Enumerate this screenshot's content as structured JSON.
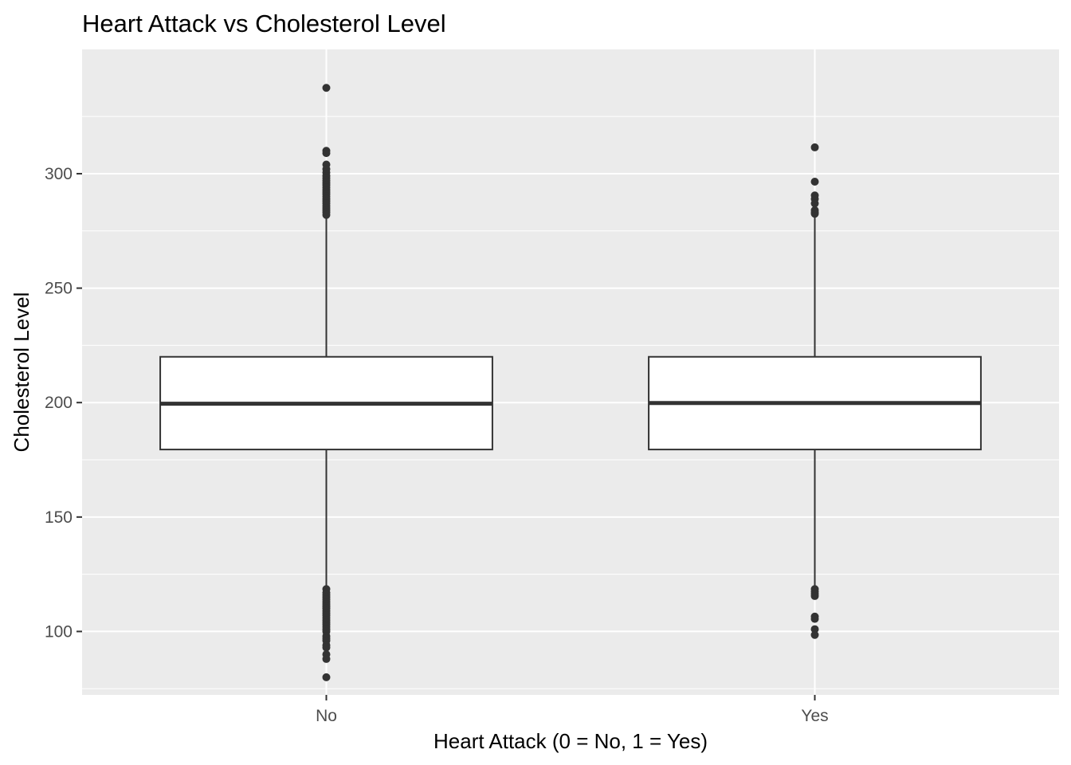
{
  "chart_data": {
    "type": "boxplot",
    "title": "Heart Attack vs Cholesterol Level",
    "xlabel": "Heart Attack (0 = No, 1 = Yes)",
    "ylabel": "Cholesterol Level",
    "categories": [
      "No",
      "Yes"
    ],
    "ylim": [
      72.3,
      354.3
    ],
    "yticks": [
      100,
      150,
      200,
      250,
      300
    ],
    "grid": true,
    "colors": {
      "panel": "#ebebeb",
      "grid": "#ffffff",
      "box_fill": "#ffffff",
      "box_stroke": "#333333",
      "outlier": "#333333",
      "tick_label": "#4d4d4d"
    },
    "boxes": [
      {
        "category": "No",
        "min": 119,
        "q1": 179.5,
        "median": 199.5,
        "q3": 220,
        "max": 281,
        "outliers": [
          337.5,
          310,
          309,
          304,
          302,
          300.5,
          299,
          298,
          297,
          296,
          295,
          294,
          293,
          292,
          291,
          290,
          289,
          288,
          287,
          286,
          285,
          284,
          283,
          282,
          118.5,
          117,
          116,
          115,
          114,
          113,
          112,
          111,
          110,
          109,
          108,
          107,
          106,
          105,
          104,
          103,
          102,
          101,
          100,
          98,
          97,
          96,
          94,
          93,
          90,
          88,
          80
        ]
      },
      {
        "category": "Yes",
        "min": 119,
        "q1": 179.5,
        "median": 199.8,
        "q3": 220,
        "max": 281,
        "outliers": [
          311.5,
          296.5,
          290.5,
          289,
          287,
          284,
          283,
          282.5,
          118.5,
          117.5,
          116.5,
          115.5,
          106.5,
          105.5,
          101,
          98.5
        ]
      }
    ]
  }
}
